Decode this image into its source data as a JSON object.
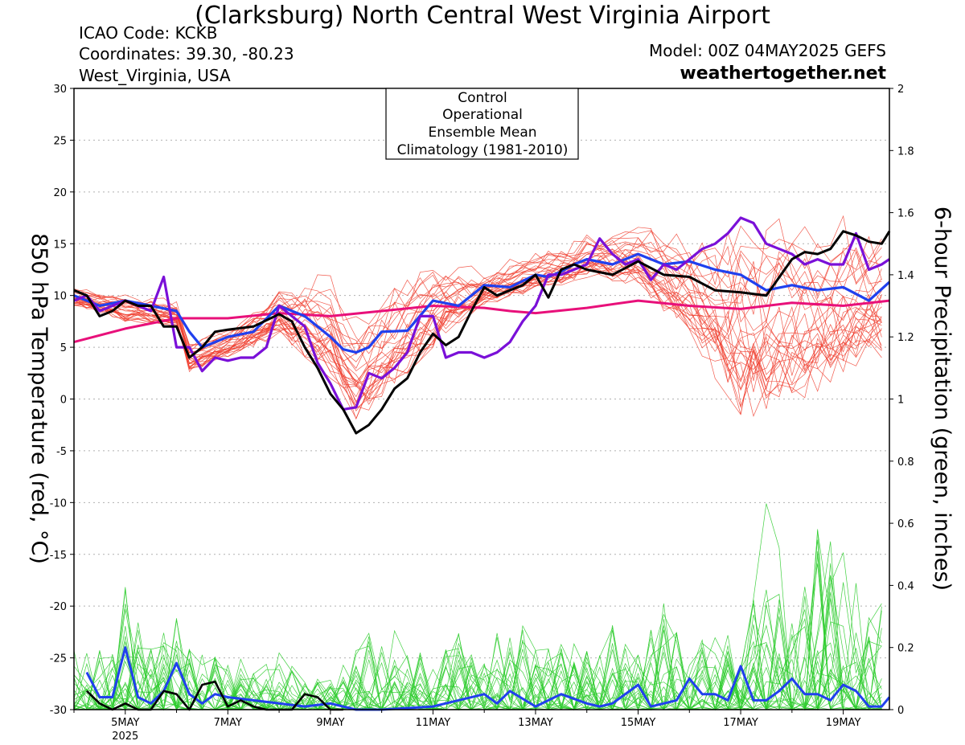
{
  "header": {
    "title": "(Clarksburg) North Central West Virginia Airport",
    "icao": "ICAO Code: KCKB",
    "coords": "Coordinates: 39.30, -80.23",
    "region": "West_Virginia, USA",
    "model": "Model: 00Z 04MAY2025 GEFS",
    "site": "weathertogether.net"
  },
  "colors": {
    "control": "#000000",
    "operational": "#7a10d8",
    "mean": "#2040ee",
    "climatology": "#e8107a",
    "members_temp": "#f04030",
    "members_precip": "#2ecc2e",
    "site": "#1a9cf0"
  },
  "chart_data": {
    "type": "line",
    "xlabel_ticks": [
      "5MAY",
      "7MAY",
      "9MAY",
      "11MAY",
      "13MAY",
      "15MAY",
      "17MAY",
      "19MAY"
    ],
    "xyear": "2025",
    "ylabel_left": "850 hPa Temperature (red, °C)",
    "ylabel_right": "6-hour Precipitation (green, inches)",
    "y_left_ticks": [
      "30",
      "25",
      "20",
      "15",
      "10",
      "5",
      "0",
      "-5",
      "-10",
      "-15",
      "-20",
      "-25",
      "-30"
    ],
    "y_right_ticks": [
      "2",
      "1.8",
      "1.6",
      "1.4",
      "1.2",
      "1",
      "0.8",
      "0.6",
      "0.4",
      "0.2",
      "0"
    ],
    "ylim_left": [
      -30,
      30
    ],
    "ylim_right": [
      0,
      2
    ],
    "x_range_days": [
      4.0,
      19.9
    ],
    "grid": "horizontal dotted",
    "legend": {
      "position": "top-center",
      "items": [
        "Control",
        "Operational",
        "Ensemble Mean",
        "Climatology (1981-2010)"
      ]
    },
    "series": [
      {
        "name": "Control",
        "axis": "left",
        "x": [
          4.0,
          4.25,
          4.5,
          4.75,
          5.0,
          5.25,
          5.5,
          5.75,
          6.0,
          6.25,
          6.5,
          6.75,
          7.0,
          7.5,
          8.0,
          8.25,
          8.5,
          8.75,
          9.0,
          9.25,
          9.5,
          9.75,
          10.0,
          10.25,
          10.5,
          10.75,
          11.0,
          11.25,
          11.5,
          11.75,
          12.0,
          12.25,
          12.5,
          12.75,
          13.0,
          13.25,
          13.5,
          13.75,
          14.0,
          14.5,
          15.0,
          15.5,
          16.0,
          16.5,
          17.0,
          17.5,
          18.0,
          18.25,
          18.5,
          18.75,
          19.0,
          19.25,
          19.5,
          19.75,
          19.9
        ],
        "values": [
          10.5,
          10.0,
          8.0,
          8.5,
          9.5,
          9.0,
          9.0,
          7.0,
          7.0,
          4.0,
          5.0,
          6.5,
          6.7,
          7.0,
          8.2,
          7.5,
          5.0,
          3.0,
          0.5,
          -1.0,
          -3.3,
          -2.5,
          -1.0,
          1.0,
          2.0,
          4.5,
          6.3,
          5.2,
          6.0,
          8.5,
          10.8,
          10.0,
          10.5,
          11.0,
          12.0,
          9.8,
          12.5,
          13.0,
          12.5,
          12.0,
          13.3,
          12.0,
          11.8,
          10.5,
          10.3,
          10.0,
          13.5,
          14.2,
          14.0,
          14.5,
          16.2,
          15.8,
          15.2,
          15.0,
          16.2
        ]
      },
      {
        "name": "Operational",
        "axis": "left",
        "x": [
          4.0,
          4.25,
          4.5,
          4.75,
          5.0,
          5.25,
          5.5,
          5.75,
          6.0,
          6.25,
          6.5,
          6.75,
          7.0,
          7.25,
          7.5,
          7.75,
          8.0,
          8.25,
          8.5,
          8.75,
          9.0,
          9.25,
          9.5,
          9.75,
          10.0,
          10.25,
          10.5,
          10.75,
          11.0,
          11.25,
          11.5,
          11.75,
          12.0,
          12.25,
          12.5,
          12.75,
          13.0,
          13.25,
          13.5,
          13.75,
          14.0,
          14.25,
          14.5,
          14.75,
          15.0,
          15.25,
          15.5,
          15.75,
          16.0,
          16.25,
          16.5,
          16.75,
          17.0,
          17.25,
          17.5,
          17.75,
          18.0,
          18.25,
          18.5,
          18.75,
          19.0,
          19.25,
          19.5,
          19.75,
          19.9
        ],
        "values": [
          9.5,
          10.0,
          8.5,
          9.0,
          9.5,
          9.0,
          8.5,
          11.8,
          5.0,
          5.0,
          2.7,
          4.0,
          3.7,
          4.0,
          4.0,
          5.0,
          9.0,
          8.0,
          7.0,
          3.5,
          1.5,
          -1.0,
          -0.8,
          2.5,
          2.0,
          3.0,
          4.5,
          8.0,
          8.0,
          4.0,
          4.5,
          4.5,
          4.0,
          4.5,
          5.5,
          7.5,
          9.0,
          12.0,
          12.0,
          12.5,
          13.0,
          15.5,
          14.0,
          13.0,
          13.5,
          11.5,
          13.0,
          12.5,
          13.5,
          14.5,
          15.0,
          16.0,
          17.5,
          17.0,
          15.0,
          14.5,
          14.0,
          13.0,
          13.5,
          13.0,
          13.0,
          16.0,
          12.5,
          13.0,
          13.5
        ]
      },
      {
        "name": "Ensemble Mean",
        "axis": "left",
        "x": [
          4.0,
          4.5,
          5.0,
          5.5,
          6.0,
          6.25,
          6.5,
          6.75,
          7.0,
          7.5,
          8.0,
          8.5,
          9.0,
          9.25,
          9.5,
          9.75,
          10.0,
          10.5,
          11.0,
          11.5,
          12.0,
          12.5,
          13.0,
          13.25,
          13.5,
          13.75,
          14.0,
          14.5,
          15.0,
          15.5,
          16.0,
          16.5,
          17.0,
          17.5,
          18.0,
          18.5,
          19.0,
          19.5,
          19.9
        ],
        "values": [
          10.0,
          9.0,
          9.5,
          9.0,
          8.5,
          6.5,
          5.0,
          5.5,
          6.0,
          6.5,
          9.0,
          8.0,
          6.0,
          4.8,
          4.5,
          5.0,
          6.5,
          6.6,
          9.5,
          9.0,
          11.0,
          10.8,
          12.0,
          11.8,
          12.3,
          13.0,
          13.5,
          13.0,
          14.0,
          13.0,
          13.3,
          12.5,
          12.0,
          10.5,
          11.0,
          10.5,
          10.8,
          9.5,
          11.3
        ]
      },
      {
        "name": "Climatology (1981-2010)",
        "axis": "left",
        "x": [
          4.0,
          5.0,
          6.0,
          7.0,
          8.0,
          9.0,
          10.0,
          11.0,
          12.0,
          12.5,
          13.0,
          14.0,
          15.0,
          16.0,
          17.0,
          18.0,
          19.0,
          19.9
        ],
        "values": [
          5.5,
          6.8,
          7.8,
          7.8,
          8.3,
          8.0,
          8.5,
          9.0,
          8.8,
          8.5,
          8.3,
          8.8,
          9.5,
          9.0,
          8.7,
          9.3,
          9.0,
          9.5
        ]
      },
      {
        "name": "Ensemble Mean Precip",
        "axis": "right",
        "x": [
          4.25,
          4.5,
          4.75,
          5.0,
          5.25,
          5.5,
          5.75,
          6.0,
          6.25,
          6.5,
          6.75,
          7.0,
          7.5,
          8.0,
          8.5,
          9.0,
          9.5,
          10.0,
          11.0,
          12.0,
          12.25,
          12.5,
          13.0,
          13.5,
          14.0,
          14.25,
          14.5,
          15.0,
          15.25,
          15.5,
          15.75,
          16.0,
          16.25,
          16.5,
          16.75,
          17.0,
          17.25,
          17.5,
          17.75,
          18.0,
          18.25,
          18.5,
          18.75,
          19.0,
          19.25,
          19.5,
          19.75,
          19.9
        ],
        "values": [
          0.12,
          0.04,
          0.04,
          0.2,
          0.04,
          0.02,
          0.06,
          0.15,
          0.05,
          0.02,
          0.05,
          0.04,
          0.03,
          0.02,
          0.01,
          0.02,
          0.0,
          0.0,
          0.01,
          0.05,
          0.02,
          0.06,
          0.01,
          0.05,
          0.02,
          0.01,
          0.02,
          0.08,
          0.01,
          0.02,
          0.03,
          0.1,
          0.05,
          0.05,
          0.03,
          0.14,
          0.03,
          0.03,
          0.06,
          0.1,
          0.05,
          0.05,
          0.03,
          0.08,
          0.06,
          0.01,
          0.01,
          0.04
        ]
      },
      {
        "name": "Control Precip",
        "axis": "right",
        "x": [
          4.25,
          4.5,
          4.75,
          5.0,
          5.25,
          5.5,
          5.75,
          6.0,
          6.25,
          6.5,
          6.75,
          7.0,
          7.25,
          7.5,
          7.75,
          8.0,
          8.25,
          8.5,
          8.75,
          9.0,
          9.25
        ],
        "values": [
          0.06,
          0.02,
          0.0,
          0.02,
          0.0,
          0.0,
          0.06,
          0.05,
          0.0,
          0.08,
          0.09,
          0.01,
          0.03,
          0.01,
          0.0,
          0.0,
          0.0,
          0.05,
          0.04,
          0.0,
          0.0
        ]
      }
    ],
    "ensemble_members": {
      "temperature_count": 30,
      "precip_count": 30,
      "temperature_band": {
        "x": [
          4.0,
          5.0,
          6.0,
          6.25,
          7.0,
          8.0,
          9.0,
          9.25,
          9.5,
          10.0,
          11.0,
          12.0,
          13.0,
          14.0,
          15.0,
          16.0,
          16.5,
          17.0,
          17.5,
          18.0,
          19.0,
          19.5,
          19.9
        ],
        "low": [
          9.0,
          7.5,
          7.0,
          2.5,
          4.0,
          6.0,
          2.0,
          0.0,
          -2.5,
          0.0,
          5.0,
          9.0,
          10.5,
          11.5,
          11.0,
          6.0,
          2.0,
          -1.5,
          -2.5,
          -0.5,
          2.0,
          4.0,
          4.0
        ],
        "high": [
          10.8,
          10.5,
          9.5,
          6.0,
          7.0,
          11.0,
          12.5,
          9.5,
          9.0,
          11.0,
          14.0,
          12.5,
          14.5,
          16.0,
          17.5,
          16.5,
          17.0,
          19.0,
          20.0,
          19.5,
          18.0,
          17.0,
          20.0
        ]
      },
      "precip_peaks": {
        "x": [
          4.75,
          5.0,
          5.5,
          6.0,
          6.25,
          6.5,
          7.0,
          8.0,
          8.5,
          9.0,
          10.0,
          11.0,
          11.5,
          12.0,
          12.5,
          13.0,
          14.0,
          14.5,
          15.0,
          15.5,
          16.0,
          16.5,
          17.0,
          17.5,
          18.0,
          18.5,
          19.0,
          19.5,
          19.9
        ],
        "max": [
          0.2,
          0.4,
          0.2,
          0.3,
          0.2,
          0.2,
          0.15,
          0.2,
          0.1,
          0.1,
          0.3,
          0.15,
          0.25,
          0.15,
          0.35,
          0.2,
          0.25,
          0.3,
          0.2,
          0.35,
          0.15,
          0.3,
          0.2,
          0.7,
          0.35,
          0.65,
          0.55,
          0.3,
          0.4
        ]
      }
    }
  }
}
